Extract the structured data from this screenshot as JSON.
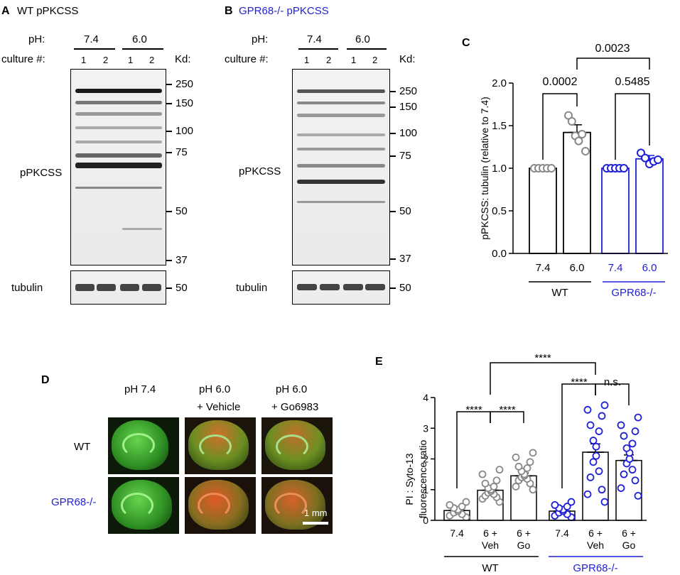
{
  "colors": {
    "wt": "#000000",
    "ko": "#1f1fd6",
    "ko_text": "#1f1fd6",
    "wt_points": "#888888",
    "ko_points": "#1f1fd6",
    "gfp": "#3fbf2e",
    "pi": "#e0522a"
  },
  "panelA": {
    "letter": "A",
    "title": "WT pPKCSS",
    "ph_label": "pH:",
    "ph_values": [
      "7.4",
      "6.0"
    ],
    "culture_label": "culture #:",
    "cultures": [
      "1",
      "2",
      "1",
      "2"
    ],
    "kd_label": "Kd:",
    "markers": [
      "250",
      "150",
      "100",
      "75",
      "50",
      "37"
    ],
    "band_label": "pPKCSS",
    "loading_label": "tubulin",
    "loading_marker": "50"
  },
  "panelB": {
    "letter": "B",
    "title": "GPR68-/- pPKCSS",
    "ph_label": "pH:",
    "ph_values": [
      "7.4",
      "6.0"
    ],
    "culture_label": "culture #:",
    "cultures": [
      "1",
      "2",
      "1",
      "2"
    ],
    "kd_label": "Kd:",
    "markers": [
      "250",
      "150",
      "100",
      "75",
      "50",
      "37"
    ],
    "band_label": "pPKCSS",
    "loading_label": "tubulin",
    "loading_marker": "50"
  },
  "panelC": {
    "letter": "C",
    "ylabel": "pPKCSS: tubulin (relative to 7.4)",
    "yticks": [
      "0.0",
      "0.5",
      "1.0",
      "1.5",
      "2.0"
    ],
    "xlabels": [
      "7.4",
      "6.0",
      "7.4",
      "6.0"
    ],
    "group_labels": [
      "WT",
      "GPR68-/-"
    ],
    "pvalues": [
      "0.0002",
      "0.5485",
      "0.0023"
    ]
  },
  "panelD": {
    "letter": "D",
    "conditions": [
      "pH 7.4",
      "pH 6.0",
      "+ Vehicle",
      "pH 6.0",
      "+ Go6983"
    ],
    "rows": [
      "WT",
      "GPR68-/-"
    ],
    "scale_label": "1 mm"
  },
  "panelE": {
    "letter": "E",
    "ylabel_line1": "PI : Syto-13",
    "ylabel_line2": "fluorescence ratio",
    "yticks": [
      "0",
      "1",
      "2",
      "3",
      "4"
    ],
    "xlabels_top": [
      "7.4",
      "6 +",
      "6 +",
      "7.4",
      "6 +",
      "6 +"
    ],
    "xlabels_bottom": [
      "",
      "Veh",
      "Go",
      "",
      "Veh",
      "Go"
    ],
    "group_labels": [
      "WT",
      "GPR68-/-"
    ],
    "sig": [
      "****",
      "****",
      "****",
      "****",
      "n.s."
    ]
  },
  "chart_data": [
    {
      "type": "bar",
      "panel": "C",
      "ylabel": "pPKCSS: tubulin (relative to 7.4)",
      "ylim": [
        0,
        2.0
      ],
      "categories": [
        "7.4",
        "6.0",
        "7.4",
        "6.0"
      ],
      "groups": [
        "WT",
        "WT",
        "GPR68-/-",
        "GPR68-/-"
      ],
      "values": [
        1.0,
        1.42,
        1.0,
        1.11
      ],
      "sem": [
        0.0,
        0.09,
        0.0,
        0.04
      ],
      "points": [
        [
          1.0,
          1.0,
          1.0,
          1.0,
          1.0
        ],
        [
          1.62,
          1.55,
          1.38,
          1.32,
          1.4,
          1.2
        ],
        [
          1.0,
          1.0,
          1.0,
          1.0,
          1.0
        ],
        [
          1.18,
          1.12,
          1.05,
          1.08,
          1.1
        ]
      ],
      "comparisons": [
        {
          "a": 0,
          "b": 1,
          "p": "0.0002"
        },
        {
          "a": 2,
          "b": 3,
          "p": "0.5485"
        },
        {
          "a": 1,
          "b": 3,
          "p": "0.0023"
        }
      ]
    },
    {
      "type": "bar",
      "panel": "E",
      "ylabel": "PI : Syto-13 fluorescence ratio",
      "ylim": [
        0,
        4
      ],
      "categories": [
        "7.4",
        "6 + Veh",
        "6 + Go",
        "7.4",
        "6 + Veh",
        "6 + Go"
      ],
      "groups": [
        "WT",
        "WT",
        "WT",
        "GPR68-/-",
        "GPR68-/-",
        "GPR68-/-"
      ],
      "values": [
        0.32,
        0.98,
        1.45,
        0.3,
        2.22,
        1.95
      ],
      "sem": [
        0.05,
        0.08,
        0.09,
        0.05,
        0.27,
        0.18
      ],
      "points": [
        [
          0.1,
          0.15,
          0.2,
          0.25,
          0.3,
          0.35,
          0.4,
          0.45,
          0.5,
          0.6
        ],
        [
          0.6,
          0.7,
          0.75,
          0.8,
          0.85,
          0.9,
          0.95,
          1.0,
          1.05,
          1.1,
          1.2,
          1.3,
          1.5,
          1.65
        ],
        [
          1.0,
          1.1,
          1.2,
          1.3,
          1.35,
          1.4,
          1.45,
          1.5,
          1.6,
          1.7,
          1.75,
          1.9,
          2.05,
          2.2
        ],
        [
          0.1,
          0.15,
          0.2,
          0.25,
          0.3,
          0.35,
          0.4,
          0.45,
          0.5,
          0.6
        ],
        [
          0.6,
          0.85,
          1.0,
          1.4,
          1.6,
          1.9,
          2.1,
          2.4,
          2.6,
          2.9,
          3.1,
          3.4,
          3.6,
          3.75
        ],
        [
          0.8,
          1.05,
          1.3,
          1.5,
          1.65,
          1.85,
          2.0,
          2.2,
          2.35,
          2.5,
          2.75,
          2.9,
          3.1,
          3.35
        ]
      ],
      "comparisons": [
        {
          "a": 0,
          "b": 1,
          "label": "****"
        },
        {
          "a": 1,
          "b": 2,
          "label": "****"
        },
        {
          "a": 3,
          "b": 4,
          "label": "****"
        },
        {
          "a": 4,
          "b": 5,
          "label": "n.s."
        },
        {
          "a": 1,
          "b": 4,
          "label": "****"
        }
      ]
    }
  ]
}
